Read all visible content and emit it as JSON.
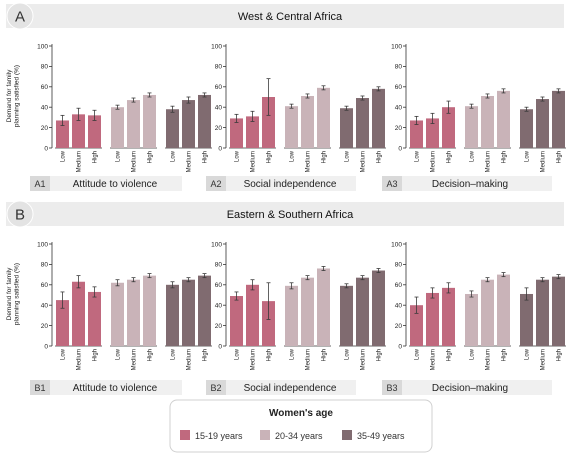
{
  "colors": {
    "g1": "#c0697e",
    "g2": "#c9b3b8",
    "g3": "#806b70",
    "banner": "#ececec",
    "tag": "#d9d9d9",
    "err": "#3a3a3a"
  },
  "ylabel": "Demand for family planning satisfied (%)",
  "levels": [
    "Low",
    "Medium",
    "High"
  ],
  "yticks": [
    "0",
    "20",
    "40",
    "60",
    "80",
    "100"
  ],
  "legend": {
    "title": "Women's age",
    "items": [
      {
        "label": "15-19 years",
        "color": "#c0697e"
      },
      {
        "label": "20-34 years",
        "color": "#c9b3b8"
      },
      {
        "label": "35-49 years",
        "color": "#806b70"
      }
    ]
  },
  "sections": [
    {
      "letter": "A",
      "title": "West & Central Africa",
      "panels": [
        {
          "tag": "A1",
          "label": "Attitude to violence"
        },
        {
          "tag": "A2",
          "label": "Social independence"
        },
        {
          "tag": "A3",
          "label": "Decision–making"
        }
      ]
    },
    {
      "letter": "B",
      "title": "Eastern & Southern Africa",
      "panels": [
        {
          "tag": "B1",
          "label": "Attitude to violence"
        },
        {
          "tag": "B2",
          "label": "Social independence"
        },
        {
          "tag": "B3",
          "label": "Decision–making"
        }
      ]
    }
  ],
  "chart_data": [
    {
      "type": "bar",
      "panel": "A1",
      "title": "Attitude to violence",
      "ylim": [
        0,
        100
      ],
      "categories": [
        "Low",
        "Medium",
        "High"
      ],
      "series": [
        {
          "name": "15-19 years",
          "values": [
            27,
            33,
            32
          ],
          "err": [
            5,
            6,
            5
          ]
        },
        {
          "name": "20-34 years",
          "values": [
            40,
            47,
            52
          ],
          "err": [
            2,
            2,
            2
          ]
        },
        {
          "name": "35-49 years",
          "values": [
            38,
            47,
            52
          ],
          "err": [
            3,
            3,
            2
          ]
        }
      ]
    },
    {
      "type": "bar",
      "panel": "A2",
      "title": "Social independence",
      "ylim": [
        0,
        100
      ],
      "categories": [
        "Low",
        "Medium",
        "High"
      ],
      "series": [
        {
          "name": "15-19 years",
          "values": [
            29,
            31,
            50
          ],
          "err": [
            4,
            5,
            18
          ]
        },
        {
          "name": "20-34 years",
          "values": [
            41,
            51,
            59
          ],
          "err": [
            2,
            2,
            2
          ]
        },
        {
          "name": "35-49 years",
          "values": [
            39,
            49,
            58
          ],
          "err": [
            2,
            2,
            2
          ]
        }
      ]
    },
    {
      "type": "bar",
      "panel": "A3",
      "title": "Decision–making",
      "ylim": [
        0,
        100
      ],
      "categories": [
        "Low",
        "Medium",
        "High"
      ],
      "series": [
        {
          "name": "15-19 years",
          "values": [
            27,
            29,
            40
          ],
          "err": [
            4,
            5,
            6
          ]
        },
        {
          "name": "20-34 years",
          "values": [
            41,
            51,
            56
          ],
          "err": [
            2,
            2,
            2
          ]
        },
        {
          "name": "35-49 years",
          "values": [
            38,
            48,
            56
          ],
          "err": [
            2,
            2,
            2
          ]
        }
      ]
    },
    {
      "type": "bar",
      "panel": "B1",
      "title": "Attitude to violence",
      "ylim": [
        0,
        100
      ],
      "categories": [
        "Low",
        "Medium",
        "High"
      ],
      "series": [
        {
          "name": "15-19 years",
          "values": [
            45,
            63,
            53
          ],
          "err": [
            8,
            6,
            5
          ]
        },
        {
          "name": "20-34 years",
          "values": [
            62,
            65,
            69
          ],
          "err": [
            3,
            2,
            2
          ]
        },
        {
          "name": "35-49 years",
          "values": [
            60,
            65,
            69
          ],
          "err": [
            3,
            2,
            2
          ]
        }
      ]
    },
    {
      "type": "bar",
      "panel": "B2",
      "title": "Social independence",
      "ylim": [
        0,
        100
      ],
      "categories": [
        "Low",
        "Medium",
        "High"
      ],
      "series": [
        {
          "name": "15-19 years",
          "values": [
            49,
            60,
            44
          ],
          "err": [
            4,
            5,
            18
          ]
        },
        {
          "name": "20-34 years",
          "values": [
            59,
            67,
            76
          ],
          "err": [
            3,
            2,
            2
          ]
        },
        {
          "name": "35-49 years",
          "values": [
            59,
            67,
            74
          ],
          "err": [
            2,
            2,
            2
          ]
        }
      ]
    },
    {
      "type": "bar",
      "panel": "B3",
      "title": "Decision–making",
      "ylim": [
        0,
        100
      ],
      "categories": [
        "Low",
        "Medium",
        "High"
      ],
      "series": [
        {
          "name": "15-19 years",
          "values": [
            40,
            52,
            57
          ],
          "err": [
            8,
            5,
            5
          ]
        },
        {
          "name": "20-34 years",
          "values": [
            51,
            65,
            70
          ],
          "err": [
            3,
            2,
            2
          ]
        },
        {
          "name": "35-49 years",
          "values": [
            51,
            65,
            68
          ],
          "err": [
            6,
            2,
            2
          ]
        }
      ]
    }
  ]
}
